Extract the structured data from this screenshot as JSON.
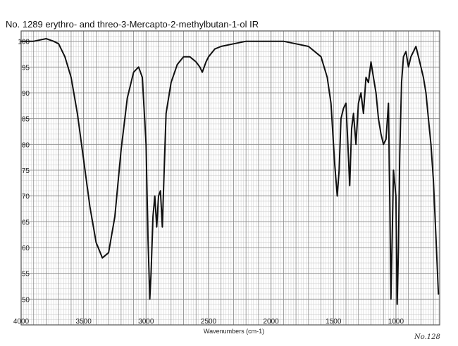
{
  "chart_data": {
    "type": "line",
    "title": "No. 1289 erythro- and threo-3-Mercapto-2-methylbutan-1-ol IR",
    "xlabel": "Wavenumbers (cm-1)",
    "ylabel": "",
    "xlim": [
      4000,
      650
    ],
    "ylim": [
      45,
      102
    ],
    "x_ticks": [
      4000,
      3500,
      3000,
      2500,
      2000,
      1500,
      1000
    ],
    "y_ticks": [
      50,
      55,
      60,
      65,
      70,
      75,
      80,
      85,
      90,
      95,
      100
    ],
    "grid": true,
    "corner_note": "No.128",
    "colors": {
      "line": "#111111",
      "grid": "#8a8a8a",
      "minor_grid": "#c9c9c9"
    },
    "series": [
      {
        "x": [
          4000,
          3900,
          3800,
          3740,
          3700,
          3650,
          3600,
          3550,
          3500,
          3450,
          3400,
          3350,
          3300,
          3250,
          3200,
          3150,
          3100,
          3060,
          3030,
          3000,
          2985,
          2970,
          2960,
          2945,
          2930,
          2915,
          2900,
          2885,
          2870,
          2855,
          2840,
          2800,
          2750,
          2700,
          2650,
          2600,
          2570,
          2550,
          2520,
          2500,
          2450,
          2400,
          2300,
          2200,
          2100,
          2000,
          1900,
          1800,
          1700,
          1650,
          1600,
          1550,
          1520,
          1490,
          1470,
          1455,
          1440,
          1420,
          1400,
          1385,
          1370,
          1355,
          1340,
          1320,
          1300,
          1280,
          1260,
          1240,
          1220,
          1200,
          1180,
          1160,
          1140,
          1120,
          1100,
          1080,
          1060,
          1050,
          1040,
          1030,
          1020,
          1000,
          990,
          980,
          970,
          955,
          940,
          920,
          900,
          880,
          860,
          840,
          820,
          800,
          780,
          760,
          740,
          720,
          700,
          680,
          660
        ],
        "y": [
          100,
          100,
          100.5,
          100,
          99.5,
          97,
          93,
          86,
          77,
          68,
          61,
          58,
          59,
          66,
          79,
          89,
          94,
          95,
          93,
          80,
          62,
          50,
          55,
          66,
          70,
          64,
          70,
          71,
          64,
          75,
          86,
          92,
          95.5,
          97,
          97,
          96,
          95,
          94,
          96,
          97,
          98.5,
          99,
          99.5,
          100,
          100,
          100,
          100,
          99.5,
          99,
          98,
          97,
          93,
          88,
          76,
          70,
          75,
          85,
          87,
          88,
          80,
          72,
          83,
          86,
          80,
          88,
          90,
          86,
          93,
          92,
          96,
          93,
          90,
          85,
          82,
          80,
          81,
          88,
          70,
          50,
          62,
          75,
          70,
          49,
          60,
          78,
          92,
          97,
          98,
          95,
          97,
          98,
          99,
          97,
          95,
          93,
          90,
          85,
          80,
          73,
          62,
          51
        ]
      }
    ]
  }
}
